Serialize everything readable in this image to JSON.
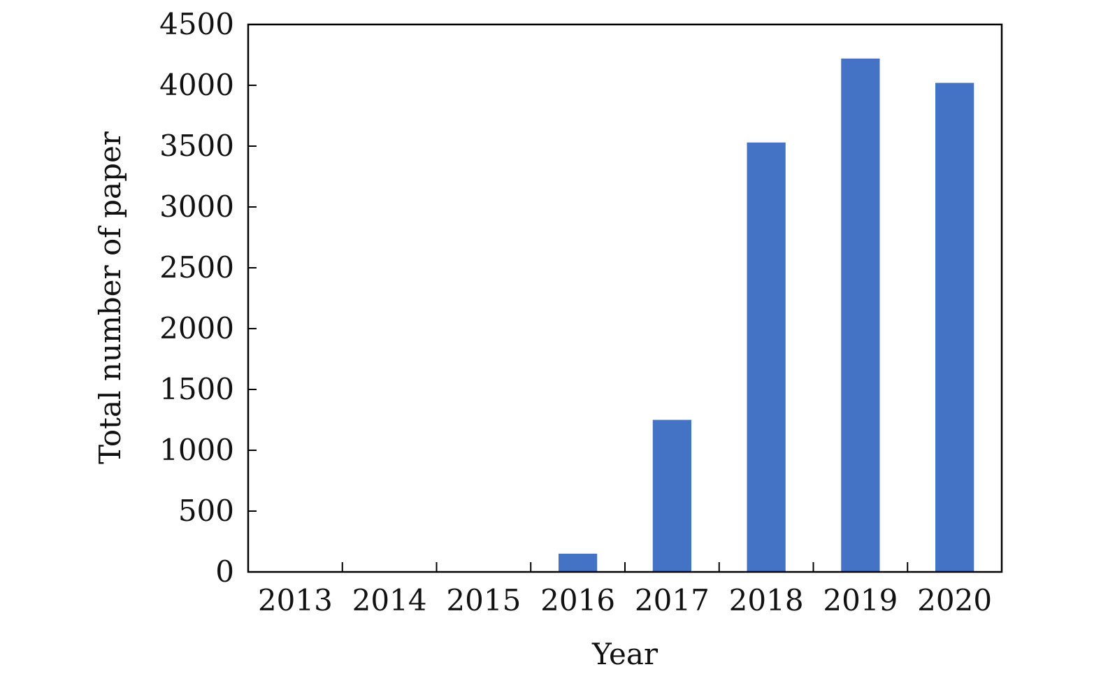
{
  "chart_data": {
    "type": "bar",
    "title": "",
    "xlabel": "Year",
    "ylabel": "Total number of paper",
    "categories": [
      "2013",
      "2014",
      "2015",
      "2016",
      "2017",
      "2018",
      "2019",
      "2020"
    ],
    "values": [
      0,
      0,
      0,
      150,
      1250,
      3530,
      4220,
      4020
    ],
    "ylim": [
      0,
      4500
    ],
    "yticks": [
      0,
      500,
      1000,
      1500,
      2000,
      2500,
      3000,
      3500,
      4000,
      4500
    ],
    "grid": false,
    "legend": "none",
    "bar_color": "#4472C4",
    "axis_color": "#000000"
  }
}
